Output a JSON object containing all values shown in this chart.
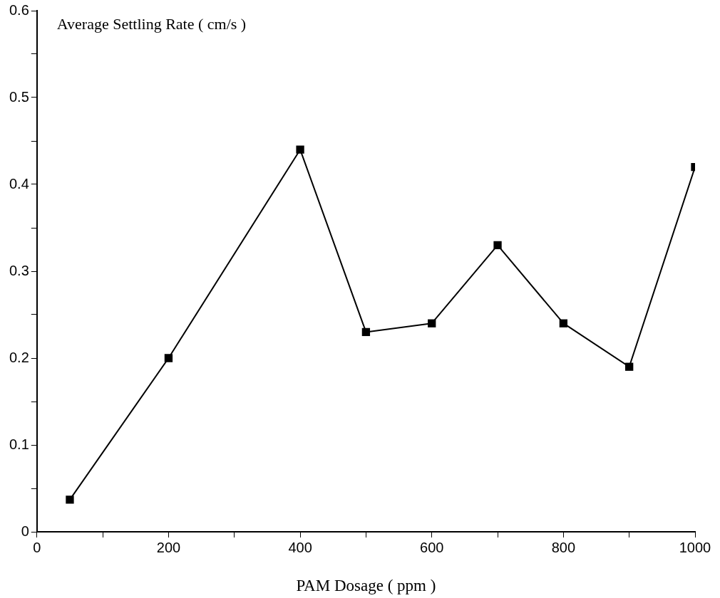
{
  "chart_data": {
    "type": "line",
    "xlabel": "PAM Dosage ( ppm )",
    "ylabel": "Average Settling Rate ( cm/s )",
    "x": [
      50,
      200,
      400,
      500,
      600,
      700,
      800,
      900,
      1000
    ],
    "series": [
      {
        "color": "#000000",
        "values": [
          0.037,
          0.2,
          0.44,
          0.23,
          0.24,
          0.33,
          0.24,
          0.19,
          0.42
        ]
      }
    ],
    "xlim": [
      0,
      1000
    ],
    "xticks": [
      0,
      {
        "value": 100,
        "label": null
      },
      200,
      {
        "value": 300,
        "label": null
      },
      400,
      {
        "value": 500,
        "label": null
      },
      600,
      {
        "value": 700,
        "label": null
      },
      800,
      {
        "value": 900,
        "label": null
      },
      1000
    ],
    "ylim": [
      0,
      0.6
    ],
    "yticks": [
      0,
      {
        "value": 0.05,
        "label": null
      },
      0.1,
      {
        "value": 0.15,
        "label": null
      },
      0.2,
      {
        "value": 0.25,
        "label": null
      },
      0.3,
      {
        "value": 0.35,
        "label": null
      },
      0.4,
      {
        "value": 0.45,
        "label": null
      },
      0.5,
      {
        "value": 0.55,
        "label": null
      },
      0.6
    ],
    "marker": "square",
    "line_style": "solid",
    "legend": false
  }
}
